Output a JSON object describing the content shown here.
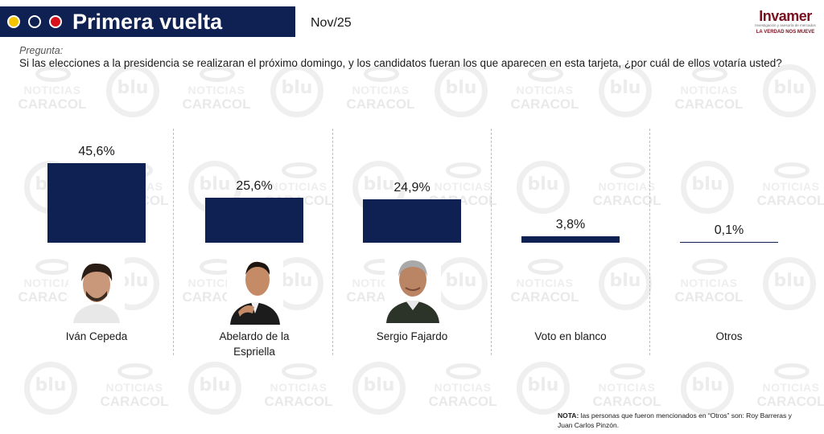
{
  "header": {
    "title": "Primera vuelta",
    "date": "Nov/25",
    "dot_colors": [
      "#f2c500",
      "#0f2152",
      "#d8101c"
    ]
  },
  "logo": {
    "name": "Invamer",
    "tagline": "Investigación y asesoría de mercados",
    "slogan": "LA VERDAD NOS MUEVE"
  },
  "question": {
    "label": "Pregunta:",
    "text": "Si las elecciones a la presidencia se realizaran el próximo domingo, y los candidatos fueran los que aparecen en esta tarjeta, ¿por cuál de ellos votaría usted?"
  },
  "watermarks": {
    "blu": "blu",
    "nc_line1": "NOTICIAS",
    "nc_line2": "CARACOL"
  },
  "chart_data": {
    "type": "bar",
    "title": "Primera vuelta",
    "categories": [
      "Iván Cepeda",
      "Abelardo de la Espriella",
      "Sergio Fajardo",
      "Voto en blanco",
      "Otros"
    ],
    "values": [
      45.6,
      25.6,
      24.9,
      3.8,
      0.1
    ],
    "value_labels": [
      "45,6%",
      "25,6%",
      "24,9%",
      "3,8%",
      "0,1%"
    ],
    "ylim": [
      0,
      45.6
    ],
    "grid": false,
    "bar_color": "#0f2152"
  },
  "note": {
    "label": "NOTA:",
    "text": " las personas que fueron mencionados en “Otros” son: Roy Barreras y Juan Carlos Pinzón."
  }
}
